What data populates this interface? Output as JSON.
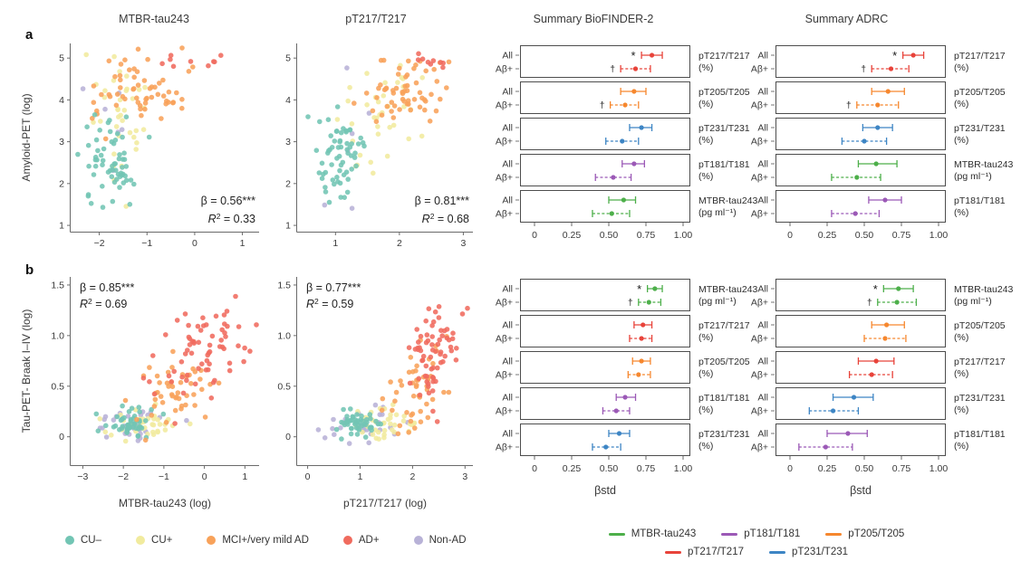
{
  "figure": {
    "panel_labels": {
      "a": "a",
      "b": "b"
    },
    "column_titles": [
      "MTBR-tau243",
      "pT217/T217",
      "Summary BioFINDER-2",
      "Summary ADRC"
    ]
  },
  "colors": {
    "scatter": {
      "cu_minus": "#72c5b4",
      "cu_plus": "#f1eb9e",
      "mci": "#f8a25a",
      "ad": "#f06b5e",
      "non_ad": "#b8b2d7"
    },
    "forest": {
      "mtbr": "#4daf4a",
      "pt181": "#9b59b6",
      "pt205": "#f6872e",
      "pt217": "#e8433a",
      "pt231": "#3d85c4"
    },
    "axis": "#6a6a6a",
    "text": "#3a3a3a",
    "sig_marker": "#1a1a1a"
  },
  "scatter_legend": [
    {
      "id": "cu_minus",
      "label": "CU–"
    },
    {
      "id": "cu_plus",
      "label": "CU+"
    },
    {
      "id": "mci",
      "label": "MCI+/very mild AD"
    },
    {
      "id": "ad",
      "label": "AD+"
    },
    {
      "id": "non_ad",
      "label": "Non-AD"
    }
  ],
  "forest_legend": {
    "row1": [
      {
        "id": "mtbr",
        "label": "MTBR-tau243"
      },
      {
        "id": "pt181",
        "label": "pT181/T181"
      },
      {
        "id": "pt205",
        "label": "pT205/T205"
      }
    ],
    "row2": [
      {
        "id": "pt217",
        "label": "pT217/T217"
      },
      {
        "id": "pt231",
        "label": "pT231/T231"
      }
    ]
  },
  "chart_data": [
    {
      "id": "scatter_a_mtbr",
      "type": "scatter",
      "title": "MTBR-tau243",
      "xlabel": "",
      "ylabel": "Amyloid-PET (log)",
      "xlim": [
        -2.6,
        1.35
      ],
      "ylim": [
        0.85,
        5.35
      ],
      "xticks": [
        -2,
        -1,
        0,
        1
      ],
      "xtick_labels": [
        "−2",
        "−1",
        "0",
        "1"
      ],
      "yticks": [
        1,
        2,
        3,
        4,
        5
      ],
      "ytick_labels": [
        "1",
        "2",
        "3",
        "4",
        "5"
      ],
      "stats": {
        "beta": "β = 0.56***",
        "r2": "0.33",
        "pos": "br"
      },
      "seed": 7,
      "clusters": [
        {
          "series": "cu_plus",
          "n": 36,
          "mx": -1.5,
          "sx": 0.38,
          "my": 3.5,
          "sy": 0.8
        },
        {
          "series": "non_ad",
          "n": 6,
          "mx": -1.75,
          "sx": 0.25,
          "my": 3.1,
          "sy": 0.7
        },
        {
          "series": "mci",
          "n": 60,
          "mx": -1.0,
          "sx": 0.6,
          "my": 4.2,
          "sy": 0.45,
          "slope": 0.25
        },
        {
          "series": "cu_minus",
          "n": 62,
          "mx": -1.75,
          "sx": 0.33,
          "my": 2.6,
          "sy": 0.5
        },
        {
          "series": "ad",
          "n": 9,
          "mx": 0.15,
          "sx": 0.4,
          "my": 4.9,
          "sy": 0.13
        }
      ]
    },
    {
      "id": "scatter_a_pt217",
      "type": "scatter",
      "title": "pT217/T217",
      "xlabel": "",
      "ylabel": "",
      "xlim": [
        0.4,
        3.15
      ],
      "ylim": [
        0.85,
        5.35
      ],
      "xticks": [
        1,
        2,
        3
      ],
      "xtick_labels": [
        "1",
        "2",
        "3"
      ],
      "yticks": [
        1,
        2,
        3,
        4,
        5
      ],
      "ytick_labels": [
        "1",
        "2",
        "3",
        "4",
        "5"
      ],
      "stats": {
        "beta": "β = 0.81***",
        "r2": "0.68",
        "pos": "br"
      },
      "seed": 13,
      "clusters": [
        {
          "series": "cu_plus",
          "n": 36,
          "mx": 1.6,
          "sx": 0.3,
          "my": 3.7,
          "sy": 0.6,
          "slope": 0.8
        },
        {
          "series": "non_ad",
          "n": 6,
          "mx": 1.15,
          "sx": 0.3,
          "my": 3.2,
          "sy": 0.7
        },
        {
          "series": "mci",
          "n": 60,
          "mx": 2.1,
          "sx": 0.32,
          "my": 4.3,
          "sy": 0.4,
          "slope": 0.5
        },
        {
          "series": "cu_minus",
          "n": 62,
          "mx": 1.0,
          "sx": 0.2,
          "my": 2.6,
          "sy": 0.5
        },
        {
          "series": "ad",
          "n": 9,
          "mx": 2.55,
          "sx": 0.15,
          "my": 4.9,
          "sy": 0.13
        }
      ]
    },
    {
      "id": "forest_a_bf2",
      "type": "forest",
      "dataset": "Summary BioFINDER-2",
      "xlabel": "",
      "xticks": [
        0,
        0.25,
        0.5,
        0.75,
        1.0
      ],
      "xtick_labels": [
        "0",
        "0.25",
        "0.50",
        "0.75",
        "1.00"
      ],
      "groups": [
        {
          "analyte": "pT217/T217",
          "unit": "(%)",
          "color": "pt217",
          "rows": [
            {
              "label": "All",
              "est": 0.79,
              "lo": 0.72,
              "hi": 0.86,
              "dashed": false,
              "sig": "*"
            },
            {
              "label": "Aβ+",
              "est": 0.68,
              "lo": 0.58,
              "hi": 0.78,
              "dashed": true,
              "sig": "†"
            }
          ]
        },
        {
          "analyte": "pT205/T205",
          "unit": "(%)",
          "color": "pt205",
          "rows": [
            {
              "label": "All",
              "est": 0.67,
              "lo": 0.58,
              "hi": 0.75,
              "dashed": false,
              "sig": ""
            },
            {
              "label": "Aβ+",
              "est": 0.61,
              "lo": 0.51,
              "hi": 0.7,
              "dashed": true,
              "sig": "†"
            }
          ]
        },
        {
          "analyte": "pT231/T231",
          "unit": "(%)",
          "color": "pt231",
          "rows": [
            {
              "label": "All",
              "est": 0.72,
              "lo": 0.64,
              "hi": 0.79,
              "dashed": false,
              "sig": ""
            },
            {
              "label": "Aβ+",
              "est": 0.59,
              "lo": 0.48,
              "hi": 0.7,
              "dashed": true,
              "sig": ""
            }
          ]
        },
        {
          "analyte": "pT181/T181",
          "unit": "(%)",
          "color": "pt181",
          "rows": [
            {
              "label": "All",
              "est": 0.67,
              "lo": 0.59,
              "hi": 0.74,
              "dashed": false,
              "sig": ""
            },
            {
              "label": "Aβ+",
              "est": 0.53,
              "lo": 0.41,
              "hi": 0.65,
              "dashed": true,
              "sig": ""
            }
          ]
        },
        {
          "analyte": "MTBR-tau243",
          "unit": "(pg ml⁻¹)",
          "color": "mtbr",
          "rows": [
            {
              "label": "All",
              "est": 0.6,
              "lo": 0.5,
              "hi": 0.68,
              "dashed": false,
              "sig": ""
            },
            {
              "label": "Aβ+",
              "est": 0.52,
              "lo": 0.39,
              "hi": 0.64,
              "dashed": true,
              "sig": ""
            }
          ]
        }
      ]
    },
    {
      "id": "forest_a_adrc",
      "type": "forest",
      "dataset": "Summary ADRC",
      "xlabel": "",
      "xticks": [
        0,
        0.25,
        0.5,
        0.75,
        1.0
      ],
      "xtick_labels": [
        "0",
        "0.25",
        "0.50",
        "0.75",
        "1.00"
      ],
      "groups": [
        {
          "analyte": "pT217/T217",
          "unit": "(%)",
          "color": "pt217",
          "rows": [
            {
              "label": "All",
              "est": 0.83,
              "lo": 0.76,
              "hi": 0.9,
              "dashed": false,
              "sig": "*"
            },
            {
              "label": "Aβ+",
              "est": 0.68,
              "lo": 0.55,
              "hi": 0.8,
              "dashed": true,
              "sig": "†"
            }
          ]
        },
        {
          "analyte": "pT205/T205",
          "unit": "(%)",
          "color": "pt205",
          "rows": [
            {
              "label": "All",
              "est": 0.66,
              "lo": 0.55,
              "hi": 0.77,
              "dashed": false,
              "sig": ""
            },
            {
              "label": "Aβ+",
              "est": 0.59,
              "lo": 0.45,
              "hi": 0.73,
              "dashed": true,
              "sig": "†"
            }
          ]
        },
        {
          "analyte": "pT231/T231",
          "unit": "(%)",
          "color": "pt231",
          "rows": [
            {
              "label": "All",
              "est": 0.59,
              "lo": 0.49,
              "hi": 0.69,
              "dashed": false,
              "sig": ""
            },
            {
              "label": "Aβ+",
              "est": 0.5,
              "lo": 0.35,
              "hi": 0.65,
              "dashed": true,
              "sig": ""
            }
          ]
        },
        {
          "analyte": "MTBR-tau243",
          "unit": "(pg ml⁻¹)",
          "color": "mtbr",
          "rows": [
            {
              "label": "All",
              "est": 0.58,
              "lo": 0.46,
              "hi": 0.72,
              "dashed": false,
              "sig": ""
            },
            {
              "label": "Aβ+",
              "est": 0.45,
              "lo": 0.28,
              "hi": 0.61,
              "dashed": true,
              "sig": ""
            }
          ]
        },
        {
          "analyte": "pT181/T181",
          "unit": "(%)",
          "color": "pt181",
          "rows": [
            {
              "label": "All",
              "est": 0.64,
              "lo": 0.53,
              "hi": 0.75,
              "dashed": false,
              "sig": ""
            },
            {
              "label": "Aβ+",
              "est": 0.44,
              "lo": 0.28,
              "hi": 0.6,
              "dashed": true,
              "sig": ""
            }
          ]
        }
      ]
    },
    {
      "id": "scatter_b_mtbr",
      "type": "scatter",
      "title": "MTBR-tau243",
      "xlabel": "MTBR-tau243 (log)",
      "ylabel": "Tau-PET- Braak I–IV (log)",
      "xlim": [
        -3.3,
        1.35
      ],
      "ylim": [
        -0.28,
        1.58
      ],
      "xticks": [
        -3,
        -2,
        -1,
        0,
        1
      ],
      "xtick_labels": [
        "−3",
        "−2",
        "−1",
        "0",
        "1"
      ],
      "yticks": [
        0,
        0.5,
        1.0,
        1.5
      ],
      "ytick_labels": [
        "0",
        "0.5",
        "1.0",
        "1.5"
      ],
      "stats": {
        "beta": "β = 0.85***",
        "r2": "0.69",
        "pos": "tl"
      },
      "seed": 21,
      "clusters": [
        {
          "series": "non_ad",
          "n": 28,
          "mx": -1.7,
          "sx": 0.5,
          "my": 0.15,
          "sy": 0.09
        },
        {
          "series": "cu_plus",
          "n": 38,
          "mx": -1.55,
          "sx": 0.42,
          "my": 0.12,
          "sy": 0.09
        },
        {
          "series": "cu_minus",
          "n": 50,
          "mx": -1.8,
          "sx": 0.32,
          "my": 0.13,
          "sy": 0.07
        },
        {
          "series": "mci",
          "n": 48,
          "mx": -0.8,
          "sx": 0.6,
          "my": 0.45,
          "sy": 0.18,
          "slope": 0.12
        },
        {
          "series": "ad",
          "n": 68,
          "mx": 0.0,
          "sx": 0.55,
          "my": 0.82,
          "sy": 0.22,
          "slope": 0.15
        }
      ]
    },
    {
      "id": "scatter_b_pt217",
      "type": "scatter",
      "title": "pT217/T217",
      "xlabel": "pT217/T217 (log)",
      "ylabel": "",
      "xlim": [
        -0.2,
        3.15
      ],
      "ylim": [
        -0.28,
        1.58
      ],
      "xticks": [
        0,
        1,
        2,
        3
      ],
      "xtick_labels": [
        "0",
        "1",
        "2",
        "3"
      ],
      "yticks": [
        0,
        0.5,
        1.0,
        1.5
      ],
      "ytick_labels": [
        "0",
        "0.5",
        "1.0",
        "1.5"
      ],
      "stats": {
        "beta": "β = 0.77***",
        "r2": "0.59",
        "pos": "tl"
      },
      "seed": 33,
      "clusters": [
        {
          "series": "non_ad",
          "n": 28,
          "mx": 1.15,
          "sx": 0.38,
          "my": 0.12,
          "sy": 0.1
        },
        {
          "series": "cu_plus",
          "n": 38,
          "mx": 1.5,
          "sx": 0.32,
          "my": 0.13,
          "sy": 0.09
        },
        {
          "series": "cu_minus",
          "n": 50,
          "mx": 0.95,
          "sx": 0.2,
          "my": 0.12,
          "sy": 0.07
        },
        {
          "series": "mci",
          "n": 48,
          "mx": 2.05,
          "sx": 0.33,
          "my": 0.42,
          "sy": 0.2,
          "slope": 0.3
        },
        {
          "series": "ad",
          "n": 68,
          "mx": 2.45,
          "sx": 0.22,
          "my": 0.85,
          "sy": 0.24,
          "slope": 0.3
        }
      ]
    },
    {
      "id": "forest_b_bf2",
      "type": "forest",
      "dataset": "Summary BioFINDER-2",
      "xlabel": "βstd",
      "xticks": [
        0,
        0.25,
        0.5,
        0.75,
        1.0
      ],
      "xtick_labels": [
        "0",
        "0.25",
        "0.50",
        "0.75",
        "1.00"
      ],
      "groups": [
        {
          "analyte": "MTBR-tau243",
          "unit": "(pg ml⁻¹)",
          "color": "mtbr",
          "rows": [
            {
              "label": "All",
              "est": 0.81,
              "lo": 0.76,
              "hi": 0.86,
              "dashed": false,
              "sig": "*"
            },
            {
              "label": "Aβ+",
              "est": 0.77,
              "lo": 0.7,
              "hi": 0.85,
              "dashed": true,
              "sig": "†"
            }
          ]
        },
        {
          "analyte": "pT217/T217",
          "unit": "(%)",
          "color": "pt217",
          "rows": [
            {
              "label": "All",
              "est": 0.73,
              "lo": 0.67,
              "hi": 0.79,
              "dashed": false,
              "sig": ""
            },
            {
              "label": "Aβ+",
              "est": 0.72,
              "lo": 0.64,
              "hi": 0.79,
              "dashed": true,
              "sig": ""
            }
          ]
        },
        {
          "analyte": "pT205/T205",
          "unit": "(%)",
          "color": "pt205",
          "rows": [
            {
              "label": "All",
              "est": 0.72,
              "lo": 0.66,
              "hi": 0.78,
              "dashed": false,
              "sig": ""
            },
            {
              "label": "Aβ+",
              "est": 0.7,
              "lo": 0.63,
              "hi": 0.78,
              "dashed": true,
              "sig": ""
            }
          ]
        },
        {
          "analyte": "pT181/T181",
          "unit": "(%)",
          "color": "pt181",
          "rows": [
            {
              "label": "All",
              "est": 0.61,
              "lo": 0.55,
              "hi": 0.68,
              "dashed": false,
              "sig": ""
            },
            {
              "label": "Aβ+",
              "est": 0.55,
              "lo": 0.46,
              "hi": 0.64,
              "dashed": true,
              "sig": ""
            }
          ]
        },
        {
          "analyte": "pT231/T231",
          "unit": "(%)",
          "color": "pt231",
          "rows": [
            {
              "label": "All",
              "est": 0.57,
              "lo": 0.5,
              "hi": 0.64,
              "dashed": false,
              "sig": ""
            },
            {
              "label": "Aβ+",
              "est": 0.48,
              "lo": 0.39,
              "hi": 0.58,
              "dashed": true,
              "sig": ""
            }
          ]
        }
      ]
    },
    {
      "id": "forest_b_adrc",
      "type": "forest",
      "dataset": "Summary ADRC",
      "xlabel": "βstd",
      "xticks": [
        0,
        0.25,
        0.5,
        0.75,
        1.0
      ],
      "xtick_labels": [
        "0",
        "0.25",
        "0.50",
        "0.75",
        "1.00"
      ],
      "groups": [
        {
          "analyte": "MTBR-tau243",
          "unit": "(pg ml⁻¹)",
          "color": "mtbr",
          "rows": [
            {
              "label": "All",
              "est": 0.73,
              "lo": 0.63,
              "hi": 0.83,
              "dashed": false,
              "sig": "*"
            },
            {
              "label": "Aβ+",
              "est": 0.72,
              "lo": 0.59,
              "hi": 0.85,
              "dashed": true,
              "sig": "†"
            }
          ]
        },
        {
          "analyte": "pT205/T205",
          "unit": "(%)",
          "color": "pt205",
          "rows": [
            {
              "label": "All",
              "est": 0.65,
              "lo": 0.55,
              "hi": 0.77,
              "dashed": false,
              "sig": ""
            },
            {
              "label": "Aβ+",
              "est": 0.64,
              "lo": 0.5,
              "hi": 0.78,
              "dashed": true,
              "sig": ""
            }
          ]
        },
        {
          "analyte": "pT217/T217",
          "unit": "(%)",
          "color": "pt217",
          "rows": [
            {
              "label": "All",
              "est": 0.58,
              "lo": 0.46,
              "hi": 0.7,
              "dashed": false,
              "sig": ""
            },
            {
              "label": "Aβ+",
              "est": 0.55,
              "lo": 0.4,
              "hi": 0.69,
              "dashed": true,
              "sig": ""
            }
          ]
        },
        {
          "analyte": "pT231/T231",
          "unit": "(%)",
          "color": "pt231",
          "rows": [
            {
              "label": "All",
              "est": 0.43,
              "lo": 0.29,
              "hi": 0.56,
              "dashed": false,
              "sig": ""
            },
            {
              "label": "Aβ+",
              "est": 0.29,
              "lo": 0.13,
              "hi": 0.46,
              "dashed": true,
              "sig": ""
            }
          ]
        },
        {
          "analyte": "pT181/T181",
          "unit": "(%)",
          "color": "pt181",
          "rows": [
            {
              "label": "All",
              "est": 0.39,
              "lo": 0.25,
              "hi": 0.52,
              "dashed": false,
              "sig": ""
            },
            {
              "label": "Aβ+",
              "est": 0.24,
              "lo": 0.06,
              "hi": 0.42,
              "dashed": true,
              "sig": ""
            }
          ]
        }
      ]
    }
  ]
}
